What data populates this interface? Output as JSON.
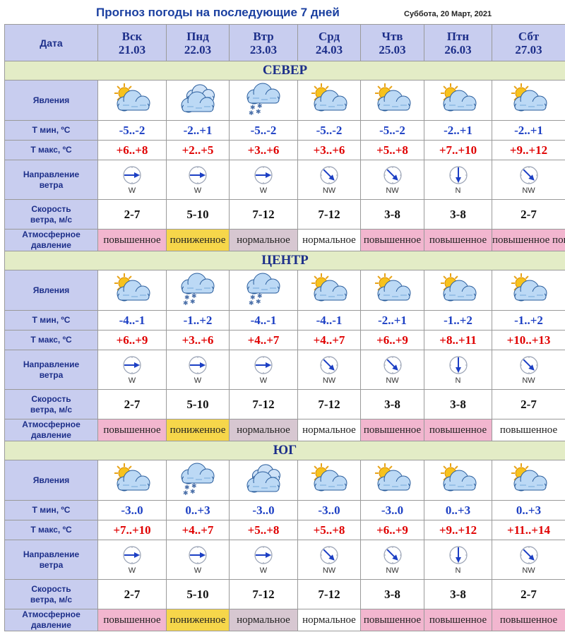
{
  "header": {
    "title": "Прогноз погоды на последующие 7 дней",
    "current_date": "Суббота, 20 Март, 2021"
  },
  "labels": {
    "date": "Дата",
    "phenomena": "Явления",
    "tmin": "Т мин, ºС",
    "tmax": "Т макс, ºС",
    "wind_dir_1": "Направление",
    "wind_dir_2": "ветра",
    "wind_speed_1": "Скорость",
    "wind_speed_2": "ветра, м/с",
    "pressure_1": "Атмосферное",
    "pressure_2": "давление"
  },
  "days": [
    {
      "name": "Вск",
      "date": "21.03"
    },
    {
      "name": "Пнд",
      "date": "22.03"
    },
    {
      "name": "Втр",
      "date": "23.03"
    },
    {
      "name": "Срд",
      "date": "24.03"
    },
    {
      "name": "Чтв",
      "date": "25.03"
    },
    {
      "name": "Птн",
      "date": "26.03"
    },
    {
      "name": "Сбт",
      "date": "27.03"
    }
  ],
  "regions": [
    {
      "name": "СЕВЕР",
      "icons": [
        "partly-cloudy-icon",
        "cloudy-icon",
        "snow-cloud-icon",
        "partly-cloudy-icon",
        "partly-cloudy-icon",
        "partly-cloudy-icon",
        "partly-cloudy-icon"
      ],
      "tmin": [
        "-5..-2",
        "-2..+1",
        "-5..-2",
        "-5..-2",
        "-5..-2",
        "-2..+1",
        "-2..+1"
      ],
      "tmax": [
        "+6..+8",
        "+2..+5",
        "+3..+6",
        "+3..+6",
        "+5..+8",
        "+7..+10",
        "+9..+12"
      ],
      "wind_dir": [
        "W",
        "W",
        "W",
        "NW",
        "NW",
        "N",
        "NW"
      ],
      "wind_speed": [
        "2-7",
        "5-10",
        "7-12",
        "7-12",
        "3-8",
        "3-8",
        "2-7"
      ],
      "pressure": [
        "повышенное",
        "пониженное",
        "нормальное",
        "нормальное",
        "повышенное",
        "повышенное",
        "повышенное  повышенное"
      ],
      "pressure_color": [
        "pink",
        "yellow",
        "gray",
        "white",
        "pink",
        "pink",
        "pink"
      ]
    },
    {
      "name": "ЦЕНТР",
      "icons": [
        "partly-cloudy-icon",
        "snow-cloud-icon",
        "snow-cloud-icon",
        "partly-cloudy-icon",
        "partly-cloudy-icon",
        "partly-cloudy-icon",
        "partly-cloudy-icon"
      ],
      "tmin": [
        "-4..-1",
        "-1..+2",
        "-4..-1",
        "-4..-1",
        "-2..+1",
        "-1..+2",
        "-1..+2"
      ],
      "tmax": [
        "+6..+9",
        "+3..+6",
        "+4..+7",
        "+4..+7",
        "+6..+9",
        "+8..+11",
        "+10..+13"
      ],
      "wind_dir": [
        "W",
        "W",
        "W",
        "NW",
        "NW",
        "N",
        "NW"
      ],
      "wind_speed": [
        "2-7",
        "5-10",
        "7-12",
        "7-12",
        "3-8",
        "3-8",
        "2-7"
      ],
      "pressure": [
        "повышенное",
        "пониженное",
        "нормальное",
        "нормальное",
        "повышенное",
        "повышенное",
        "повышенное"
      ],
      "pressure_color": [
        "pink",
        "yellow",
        "gray",
        "white",
        "pink",
        "pink",
        "white"
      ]
    },
    {
      "name": "ЮГ",
      "icons": [
        "partly-cloudy-icon",
        "snow-cloud-icon",
        "cloudy-icon",
        "partly-cloudy-icon",
        "partly-cloudy-icon",
        "partly-cloudy-icon",
        "partly-cloudy-icon"
      ],
      "tmin": [
        "-3..0",
        "0..+3",
        "-3..0",
        "-3..0",
        "-3..0",
        "0..+3",
        "0..+3"
      ],
      "tmax": [
        "+7..+10",
        "+4..+7",
        "+5..+8",
        "+5..+8",
        "+6..+9",
        "+9..+12",
        "+11..+14"
      ],
      "wind_dir": [
        "W",
        "W",
        "W",
        "NW",
        "NW",
        "N",
        "NW"
      ],
      "wind_speed": [
        "2-7",
        "5-10",
        "7-12",
        "7-12",
        "3-8",
        "3-8",
        "2-7"
      ],
      "pressure": [
        "повышенное",
        "пониженное",
        "нормальное",
        "нормальное",
        "повышенное",
        "повышенное",
        "повышенное"
      ],
      "pressure_color": [
        "pink",
        "yellow",
        "gray",
        "white",
        "pink",
        "pink",
        "pink"
      ]
    }
  ],
  "colors": {
    "header_bg": "#c8cdef",
    "region_bg": "#e3ecc6",
    "tmin": "#1c3fc4",
    "tmax": "#e00000",
    "pressure_high": "#f2b6cf",
    "pressure_low": "#f6d64a",
    "pressure_normal": "#d7c7d1"
  }
}
